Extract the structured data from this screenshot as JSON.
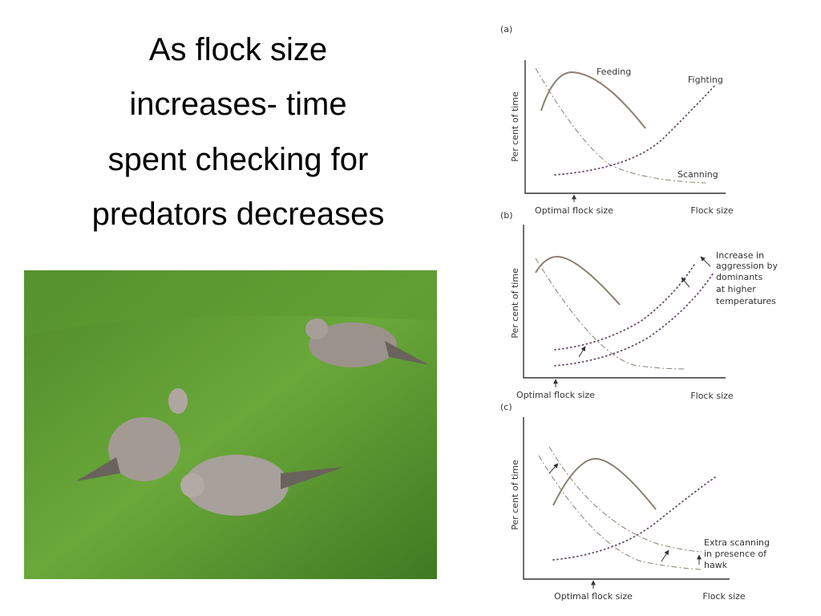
{
  "header": {
    "title": [
      "As flock size",
      "increases- time",
      "spent checking for",
      "predators decreases"
    ]
  },
  "figure": {
    "panels": [
      {
        "label": "(a)",
        "y_axis": "Per cent of time",
        "x_axis_marker": "Optimal flock size",
        "x_axis": "Flock size",
        "curve_labels": [
          "Feeding",
          "Fighting",
          "Scanning"
        ]
      },
      {
        "label": "(b)",
        "y_axis": "Per cent of time",
        "x_axis_marker": "Optimal flock size",
        "x_axis": "Flock size",
        "annotation": [
          "Increase in",
          "aggression by",
          "dominants",
          "at higher",
          "temperatures"
        ]
      },
      {
        "label": "(c)",
        "y_axis": "Per cent of time",
        "x_axis_marker": "Optimal flock size",
        "x_axis": "Flock size",
        "annotation": [
          "Extra scanning",
          "in presence of",
          "hawk"
        ]
      }
    ]
  }
}
